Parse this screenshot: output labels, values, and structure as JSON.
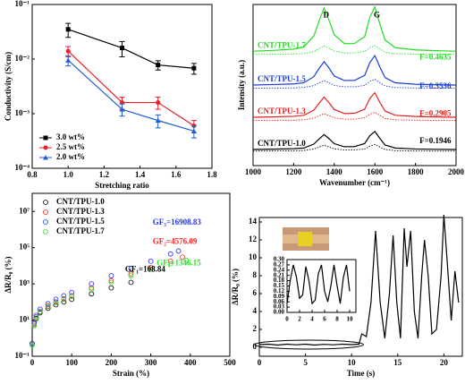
{
  "chart_data": [
    {
      "type": "line",
      "xlabel": "Stretching ratio",
      "ylabel": "Conductivity (S/cm)",
      "ylog": true,
      "xlim": [
        0.8,
        1.8
      ],
      "xticks": [
        0.8,
        {
          "value": 1,
          "label": "1.0"
        },
        1.2,
        1.4,
        1.6,
        1.8
      ],
      "ylim": [
        0.0001,
        0.1
      ],
      "yticks": [
        {
          "value": 0.0001,
          "label": "10⁻⁴"
        },
        {
          "value": 0.001,
          "label": "10⁻³"
        },
        {
          "value": 0.01,
          "label": "10⁻²"
        },
        {
          "value": 0.1,
          "label": "10⁻¹"
        }
      ],
      "x": [
        1.0,
        1.3,
        1.5,
        1.7
      ],
      "legend": "lower left",
      "series": [
        {
          "name": "3.0 wt%",
          "color": "#000000",
          "marker": "square",
          "values": [
            0.035,
            0.016,
            0.0078,
            0.0068
          ],
          "errors": [
            0.01,
            0.005,
            0.0015,
            0.0015
          ]
        },
        {
          "name": "2.5 wt%",
          "color": "#e8202a",
          "marker": "circle",
          "values": [
            0.014,
            0.0016,
            0.0016,
            0.0006
          ],
          "errors": [
            0.003,
            0.0004,
            0.0004,
            0.00015
          ]
        },
        {
          "name": "2.0 wt%",
          "color": "#1f5fd6",
          "marker": "triangle",
          "values": [
            0.0095,
            0.0012,
            0.00075,
            0.00048
          ],
          "errors": [
            0.002,
            0.0003,
            0.0002,
            0.00012
          ]
        }
      ]
    },
    {
      "type": "line",
      "xlabel": "Wavenumber (cm⁻¹)",
      "ylabel": "Intensity (a.u.)",
      "xlim": [
        1000,
        2000
      ],
      "xticks": [
        1000,
        1200,
        1400,
        1600,
        1800,
        2000
      ],
      "ylim": [
        0,
        10
      ],
      "x": [
        1000,
        1100,
        1200,
        1250,
        1300,
        1325,
        1350,
        1375,
        1400,
        1450,
        1500,
        1550,
        1575,
        1600,
        1625,
        1650,
        1700,
        1800,
        1900,
        2000
      ],
      "series": [
        {
          "name": "CNT/TPU-1.7",
          "color": "#22dd22",
          "values": [
            7.1,
            7.15,
            7.23,
            7.36,
            8.06,
            8.97,
            9.78,
            8.99,
            8.12,
            7.57,
            7.58,
            8.01,
            9.2,
            9.85,
            8.77,
            7.8,
            7.32,
            7.18,
            7.13,
            7.1
          ]
        },
        {
          "color": "#22dd22",
          "dash": true,
          "values": [
            6.9,
            6.91,
            6.93,
            6.95,
            7.08,
            7.26,
            7.42,
            7.27,
            7.1,
            6.99,
            6.99,
            7.09,
            7.32,
            7.45,
            7.23,
            7.04,
            6.94,
            6.92,
            6.91,
            6.9
          ]
        },
        {
          "name": "CNT/TPU-1.5",
          "color": "#1a3cd8",
          "values": [
            5.0,
            5.03,
            5.07,
            5.14,
            5.53,
            6.02,
            6.45,
            6.04,
            5.56,
            5.28,
            5.29,
            5.6,
            6.39,
            6.83,
            6.11,
            5.46,
            5.14,
            5.05,
            5.02,
            5.0
          ]
        },
        {
          "color": "#1a3cd8",
          "dash": true,
          "values": [
            4.8,
            4.81,
            4.82,
            4.85,
            4.97,
            5.13,
            5.27,
            5.13,
            4.98,
            4.89,
            4.89,
            4.98,
            5.23,
            5.36,
            5.14,
            4.95,
            4.84,
            4.82,
            4.81,
            4.8
          ]
        },
        {
          "name": "CNT/TPU-1.3",
          "color": "#e62020",
          "values": [
            3.0,
            3.02,
            3.06,
            3.12,
            3.45,
            3.87,
            4.25,
            3.89,
            3.48,
            3.23,
            3.25,
            3.5,
            4.16,
            4.52,
            3.92,
            3.39,
            3.12,
            3.05,
            3.02,
            3.0
          ]
        },
        {
          "color": "#e62020",
          "dash": true,
          "values": [
            2.8,
            2.81,
            2.82,
            2.84,
            2.95,
            3.09,
            3.22,
            3.1,
            2.96,
            2.88,
            2.88,
            2.97,
            3.19,
            3.31,
            3.11,
            2.93,
            2.84,
            2.82,
            2.81,
            2.8
          ]
        },
        {
          "name": "CNT/TPU-1.0",
          "color": "#000000",
          "values": [
            1.0,
            1.02,
            1.05,
            1.09,
            1.34,
            1.65,
            1.93,
            1.66,
            1.36,
            1.17,
            1.18,
            1.37,
            1.85,
            2.12,
            1.68,
            1.28,
            1.09,
            1.03,
            1.01,
            1.0
          ]
        },
        {
          "color": "#000000",
          "dash": true,
          "values": [
            0.9,
            0.91,
            0.92,
            0.94,
            1.03,
            1.15,
            1.26,
            1.15,
            1.04,
            0.97,
            0.97,
            1.03,
            1.21,
            1.31,
            1.15,
            1.0,
            0.93,
            0.91,
            0.9,
            0.9
          ]
        }
      ],
      "annotations": [
        {
          "text": "D",
          "color": "#000000"
        },
        {
          "text": "G",
          "color": "#000000"
        },
        {
          "text": "F=0.4635",
          "color": "#22dd22"
        },
        {
          "text": "F=0.3536",
          "color": "#1a3cd8"
        },
        {
          "text": "F=0.2905",
          "color": "#e62020"
        },
        {
          "text": "F=0.1946",
          "color": "#000000"
        }
      ]
    },
    {
      "type": "scatter",
      "xlabel": "Strain (%)",
      "ylabel": "ΔR/R₀ (%)",
      "ylog": true,
      "xlim": [
        0,
        500
      ],
      "xticks": [
        0,
        100,
        200,
        300,
        400,
        500
      ],
      "ylim": [
        0.1,
        100000000
      ],
      "yticks": [
        {
          "value": 0.1,
          "label": "10⁻¹"
        },
        {
          "value": 10,
          "label": "10¹"
        },
        {
          "value": 1000,
          "label": "10³"
        },
        {
          "value": 100000,
          "label": "10⁵"
        },
        {
          "value": 10000000,
          "label": "10⁷"
        }
      ],
      "legend": "upper left",
      "series": [
        {
          "name": "CNT/TPU-1.0",
          "color": "#000000",
          "marker": "open-circle",
          "x": [
            0,
            5,
            10,
            20,
            40,
            60,
            80,
            100,
            150,
            200,
            250
          ],
          "values": [
            0.5,
            5,
            12,
            25,
            45,
            70,
            100,
            140,
            280,
            600,
            1200
          ]
        },
        {
          "name": "CNT/TPU-1.3",
          "color": "#ff2020",
          "marker": "open-circle",
          "x": [
            0,
            5,
            10,
            20,
            40,
            60,
            80,
            100,
            150,
            200,
            250,
            300,
            350,
            380
          ],
          "values": [
            0.5,
            6,
            15,
            30,
            60,
            100,
            150,
            220,
            600,
            1500,
            3500,
            8000,
            18000,
            30000
          ]
        },
        {
          "name": "CNT/TPU-1.5",
          "color": "#2030ff",
          "marker": "open-circle",
          "x": [
            0,
            5,
            10,
            20,
            40,
            60,
            80,
            100,
            150,
            200,
            250,
            300,
            350,
            370
          ],
          "values": [
            0.5,
            7,
            18,
            40,
            80,
            140,
            220,
            330,
            1000,
            2800,
            7000,
            18000,
            45000,
            65000
          ]
        },
        {
          "name": "CNT/TPU-1.7",
          "color": "#30e030",
          "marker": "open-circle",
          "x": [
            0,
            5,
            10,
            20,
            40,
            60,
            80,
            100,
            150,
            200,
            250,
            300,
            350,
            390
          ],
          "values": [
            0.4,
            5,
            13,
            28,
            55,
            90,
            140,
            200,
            500,
            1200,
            2800,
            6000,
            13000,
            20000
          ]
        }
      ],
      "annotations": [
        {
          "text": "GF₃=16908.83",
          "color": "#2030ff"
        },
        {
          "text": "GF₂=4576.09",
          "color": "#ff2020"
        },
        {
          "text": "GF₄=1346.15",
          "color": "#30e030"
        },
        {
          "text": "GF₁=108.84",
          "color": "#000000"
        }
      ]
    },
    {
      "type": "line",
      "xlabel": "Time (s)",
      "ylabel": "ΔR/R₀ (%)",
      "xlim": [
        0,
        22
      ],
      "xticks": [
        0,
        5,
        10,
        15,
        20
      ],
      "ylim": [
        -1,
        14.5
      ],
      "yticks": [
        0,
        2,
        4,
        6,
        8,
        10,
        12,
        14
      ],
      "x": [
        0,
        1,
        2,
        3,
        4,
        5,
        6,
        7,
        8,
        9,
        10,
        10.8,
        11.1,
        11.6,
        12.1,
        12.6,
        13.1,
        13.6,
        14.1,
        14.5,
        14.9,
        15.3,
        15.7,
        16.0,
        16.4,
        16.8,
        17.2,
        17.6,
        17.9,
        18.3,
        18.7,
        19.2,
        19.7,
        20.0,
        20.4,
        20.8,
        21.2,
        21.6
      ],
      "series": [
        {
          "color": "#000000",
          "values": [
            0.3,
            0.35,
            0.25,
            0.35,
            0.28,
            0.35,
            0.25,
            0.33,
            0.28,
            0.35,
            0.3,
            0.35,
            1.5,
            1.2,
            5,
            13,
            5,
            1,
            6,
            12.5,
            5,
            1,
            13.3,
            9,
            13,
            4,
            1,
            8,
            12,
            8,
            1.5,
            2,
            8,
            14.8,
            9,
            3,
            8.5,
            5
          ]
        }
      ],
      "inset": {
        "type": "line",
        "xlim": [
          0,
          11
        ],
        "xticks": [
          0,
          2,
          4,
          6,
          8,
          10
        ],
        "ylim": [
          0,
          0.3
        ],
        "yticks": [
          {
            "value": 0,
            "label": "0.00"
          },
          0.03,
          0.06,
          0.09,
          0.12,
          0.15,
          0.18,
          0.21,
          0.24,
          0.27,
          {
            "value": 0.3,
            "label": "0.30"
          }
        ],
        "x": [
          0,
          0.5,
          1,
          1.5,
          2,
          2.5,
          3,
          3.5,
          4,
          4.5,
          5,
          5.5,
          6,
          6.5,
          7,
          7.5,
          8,
          8.5,
          9,
          9.5,
          10
        ],
        "series": [
          {
            "color": "#000000",
            "values": [
              0.05,
              0.18,
              0.27,
              0.2,
              0.08,
              0.1,
              0.26,
              0.18,
              0.05,
              0.07,
              0.22,
              0.27,
              0.12,
              0.06,
              0.15,
              0.27,
              0.15,
              0.05,
              0.2,
              0.27,
              0.12
            ]
          }
        ]
      }
    }
  ]
}
